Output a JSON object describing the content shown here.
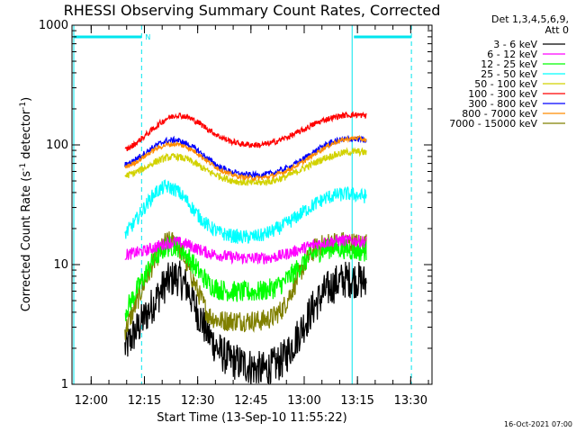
{
  "chart_data": {
    "type": "line",
    "title": "RHESSI Observing Summary Count Rates, Corrected",
    "xlabel": "Start Time (13-Sep-10 11:55:22)",
    "ylabel_main": "Corrected Count Rate (s",
    "ylabel_sup1": "-1",
    "ylabel_mid": " detector",
    "ylabel_sup2": "-1",
    "ylabel_end": ")",
    "y_scale": "log",
    "ylim": [
      1,
      1000
    ],
    "x_tick_labels": [
      "12:00",
      "12:15",
      "12:30",
      "12:45",
      "13:00",
      "13:15",
      "13:30"
    ],
    "x_tick_minutes": [
      0,
      15,
      30,
      45,
      60,
      75,
      90
    ],
    "y_tick_labels": [
      "1",
      "10",
      "100",
      "1000"
    ],
    "y_tick_values": [
      1,
      10,
      100,
      1000
    ],
    "xlim_minutes": [
      -5.4,
      96
    ],
    "data_range_minutes": [
      9.5,
      77.5
    ],
    "legend_header": [
      "Det 1,3,4,5,6,9,",
      "Att 0"
    ],
    "legend_position": "right",
    "timestamp": "16-Oct-2021 07:00",
    "flag_label": "N",
    "night_bars": [
      [
        -5.4,
        14.2
      ],
      [
        73.5,
        90.2
      ]
    ],
    "vertical_lines": [
      14.2,
      73.5,
      90.2
    ],
    "x": [
      9.5,
      12,
      15,
      18,
      21,
      24,
      27,
      30,
      33,
      36,
      39,
      42,
      45,
      48,
      51,
      54,
      57,
      60,
      63,
      66,
      69,
      72,
      75,
      77.5
    ],
    "series": [
      {
        "name": "3 - 6 keV",
        "color": "#000000",
        "noise": 0.16,
        "values": [
          2,
          2.6,
          3.6,
          5,
          7,
          8,
          6.5,
          4,
          2.6,
          1.9,
          1.6,
          1.5,
          1.4,
          1.3,
          1.4,
          1.6,
          2.2,
          3.2,
          4.6,
          6,
          7,
          7.6,
          7.5,
          7
        ]
      },
      {
        "name": "6 - 12 keV",
        "color": "#ff00ff",
        "noise": 0.05,
        "values": [
          12,
          12.5,
          13,
          14,
          15,
          15.5,
          14.8,
          13.5,
          12.5,
          12,
          11.6,
          11.4,
          11.3,
          11.3,
          11.5,
          12,
          12.8,
          13.8,
          14.8,
          15.4,
          15.8,
          16,
          15.8,
          15.5
        ]
      },
      {
        "name": "12 - 25 keV",
        "color": "#00ff00",
        "noise": 0.09,
        "values": [
          4,
          5.5,
          8,
          11.5,
          14,
          14.5,
          12,
          9,
          7,
          6.2,
          6,
          5.9,
          5.9,
          6,
          6.3,
          7,
          8.5,
          10.5,
          12.5,
          13.5,
          14,
          13.5,
          13,
          13
        ]
      },
      {
        "name": "25 - 50 keV",
        "color": "#00ffff",
        "noise": 0.06,
        "values": [
          18,
          22,
          30,
          40,
          45,
          42,
          34,
          26,
          21,
          18.5,
          17.5,
          17,
          17,
          17.5,
          19,
          21,
          24,
          28,
          32,
          36,
          38,
          39,
          38,
          37
        ]
      },
      {
        "name": "50 - 100 keV",
        "color": "#d2d200",
        "noise": 0.03,
        "values": [
          55,
          58,
          64,
          72,
          78,
          80,
          76,
          68,
          60,
          55,
          51,
          49,
          48,
          48.5,
          50,
          53,
          58,
          64,
          71,
          78,
          83,
          87,
          88,
          86
        ]
      },
      {
        "name": "100 - 300 keV",
        "color": "#ff0000",
        "noise": 0.025,
        "values": [
          90,
          100,
          118,
          140,
          165,
          178,
          172,
          155,
          135,
          118,
          108,
          102,
          100,
          100,
          104,
          112,
          122,
          135,
          150,
          163,
          172,
          178,
          178,
          175
        ]
      },
      {
        "name": "300 - 800 keV",
        "color": "#0000ff",
        "noise": 0.025,
        "values": [
          68,
          74,
          85,
          98,
          108,
          110,
          102,
          90,
          76,
          66,
          60,
          57,
          56,
          56,
          58,
          62,
          68,
          77,
          88,
          100,
          108,
          112,
          112,
          108
        ]
      },
      {
        "name": "800 - 7000 keV",
        "color": "#ff8c00",
        "noise": 0.02,
        "values": [
          65,
          70,
          80,
          92,
          100,
          102,
          96,
          85,
          72,
          63,
          57,
          54,
          53,
          53,
          55,
          59,
          65,
          73,
          84,
          96,
          106,
          112,
          114,
          110
        ]
      },
      {
        "name": "7000 - 15000 keV",
        "color": "#808000",
        "noise": 0.09,
        "values": [
          2.8,
          4.2,
          7,
          11,
          15.5,
          15.5,
          10,
          6,
          3.8,
          3.4,
          3.4,
          3.4,
          3.4,
          3.4,
          3.6,
          4.3,
          6.5,
          10,
          13.5,
          15,
          15.5,
          15.5,
          15,
          15
        ]
      }
    ]
  }
}
